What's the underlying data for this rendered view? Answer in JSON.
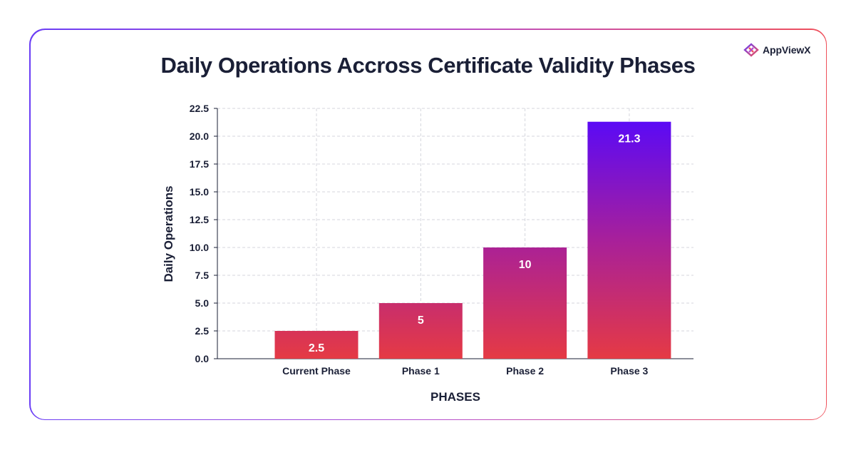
{
  "brand": {
    "logo_text": "AppViewX",
    "logo_icon": "appviewx-diamond-icon"
  },
  "colors": {
    "bar_bottom": "#e53a44",
    "bar_top_max": "#5b0af5",
    "frame_left": "#6a3df5",
    "frame_right": "#ef4f5a",
    "text": "#1a1f36"
  },
  "chart_data": {
    "type": "bar",
    "title": "Daily Operations Accross Certificate Validity Phases",
    "xlabel": "PHASES",
    "ylabel": "Daily Operations",
    "categories": [
      "Current Phase",
      "Phase 1",
      "Phase 2",
      "Phase 3"
    ],
    "values": [
      2.5,
      5,
      10,
      21.3
    ],
    "data_labels": [
      "2.5",
      "5",
      "10",
      "21.3"
    ],
    "ylim": [
      0,
      22.5
    ],
    "yticks": [
      0,
      2.5,
      5,
      7.5,
      10,
      12.5,
      15,
      17.5,
      20,
      22.5
    ],
    "ytick_labels": [
      "0.0",
      "2.5",
      "5.0",
      "7.5",
      "10.0",
      "12.5",
      "15.0",
      "17.5",
      "20.0",
      "22.5"
    ],
    "grid": true,
    "legend": "none"
  }
}
